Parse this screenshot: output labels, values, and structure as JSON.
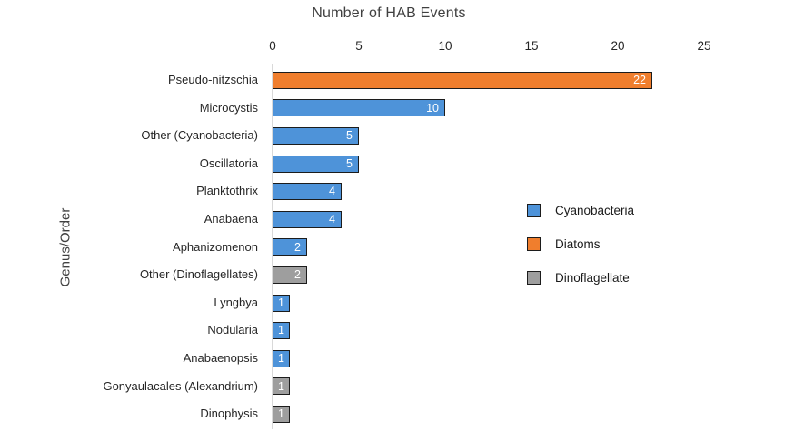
{
  "title": "Number of HAB Events",
  "ylabel": "Genus/Order",
  "legend": [
    {
      "label": "Cyanobacteria",
      "color": "#4E93D9"
    },
    {
      "label": "Diatoms",
      "color": "#F07E2D"
    },
    {
      "label": "Dinoflagellate",
      "color": "#9E9E9E"
    }
  ],
  "chart_data": {
    "type": "bar",
    "orientation": "horizontal",
    "title": "Number of HAB Events",
    "ylabel": "Genus/Order",
    "xlim": [
      0,
      25
    ],
    "xticks": [
      0,
      5,
      10,
      15,
      20,
      25
    ],
    "grid": false,
    "legend_position": "right",
    "value_labels": "inside-end",
    "categories": [
      "Pseudo-nitzschia",
      "Microcystis",
      "Other (Cyanobacteria)",
      "Oscillatoria",
      "Planktothrix",
      "Anabaena",
      "Aphanizomenon",
      "Other (Dinoflagellates)",
      "Lyngbya",
      "Nodularia",
      "Anabaenopsis",
      "Gonyaulacales (Alexandrium)",
      "Dinophysis"
    ],
    "values": [
      22,
      10,
      5,
      5,
      4,
      4,
      2,
      2,
      1,
      1,
      1,
      1,
      1
    ],
    "groups": [
      "Diatoms",
      "Cyanobacteria",
      "Cyanobacteria",
      "Cyanobacteria",
      "Cyanobacteria",
      "Cyanobacteria",
      "Cyanobacteria",
      "Dinoflagellate",
      "Cyanobacteria",
      "Cyanobacteria",
      "Cyanobacteria",
      "Dinoflagellate",
      "Dinoflagellate"
    ],
    "series_colors": {
      "Cyanobacteria": "#4E93D9",
      "Diatoms": "#F07E2D",
      "Dinoflagellate": "#9E9E9E"
    }
  }
}
